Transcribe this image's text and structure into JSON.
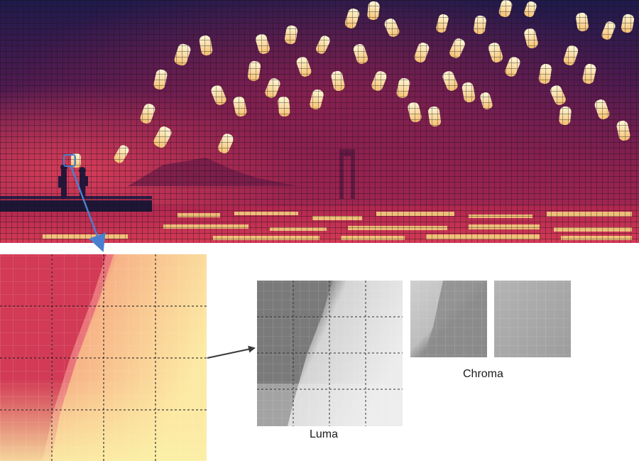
{
  "labels": {
    "luma": "Luma",
    "chroma": "Chroma"
  },
  "colors": {
    "sky_dark": "#1e1a4a",
    "sky_mid": "#5a1a4e",
    "sky_glow": "#b8284e",
    "lantern_core": "#fff3c0",
    "lantern_edge": "#f7b86a",
    "water": "#c22a52",
    "zoom_red": "#d23a55",
    "zoom_yellow": "#fbe9a0",
    "arrow_blue": "#4a7fd0",
    "arrow_dark": "#3a3a3a",
    "grid_line": "#141414"
  },
  "icons": {
    "zoom_arrow": "arrow-icon",
    "pipeline_arrow": "arrow-icon"
  }
}
